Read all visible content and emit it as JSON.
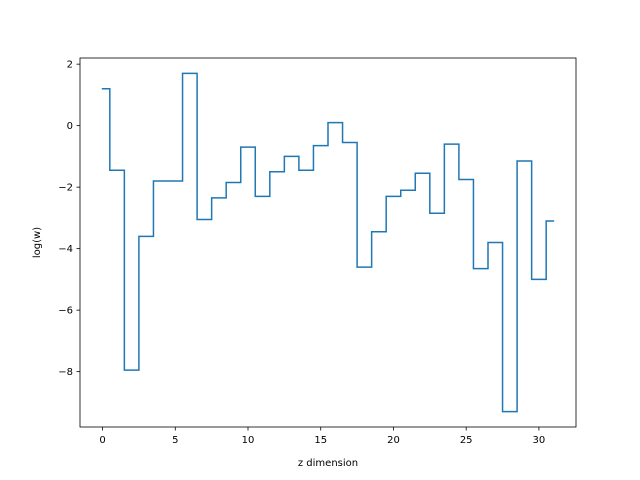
{
  "chart_data": {
    "type": "line",
    "drawstyle": "steps-mid",
    "title": "",
    "xlabel": "z dimension",
    "ylabel": "log(w)",
    "xlim": [
      -1.55,
      32.55
    ],
    "ylim": [
      -9.8,
      2.2
    ],
    "xticks": [
      0,
      5,
      10,
      15,
      20,
      25,
      30
    ],
    "xtick_labels": [
      "0",
      "5",
      "10",
      "15",
      "20",
      "25",
      "30"
    ],
    "yticks": [
      2,
      0,
      -2,
      -4,
      -6,
      -8
    ],
    "ytick_labels": [
      "2",
      "0",
      "−2",
      "−4",
      "−6",
      "−8"
    ],
    "grid": false,
    "legend": "none",
    "line_color": "#1f77b4",
    "series": [
      {
        "x": [
          0,
          1,
          2,
          3,
          4,
          5,
          6,
          7,
          8,
          9,
          10,
          11,
          12,
          13,
          14,
          15,
          16,
          17,
          18,
          19,
          20,
          21,
          22,
          23,
          24,
          25,
          26,
          27,
          28,
          29,
          30,
          31
        ],
        "values": [
          1.2,
          -1.45,
          -7.95,
          -3.6,
          -1.8,
          -1.8,
          1.7,
          -3.05,
          -2.35,
          -1.85,
          -0.7,
          -2.3,
          -1.5,
          -1.0,
          -1.45,
          -0.65,
          0.1,
          -0.55,
          -4.6,
          -3.45,
          -2.3,
          -2.1,
          -1.55,
          -2.85,
          -0.6,
          -1.75,
          -4.65,
          -3.8,
          -9.3,
          -1.15,
          -5.0,
          -3.1
        ]
      }
    ]
  }
}
